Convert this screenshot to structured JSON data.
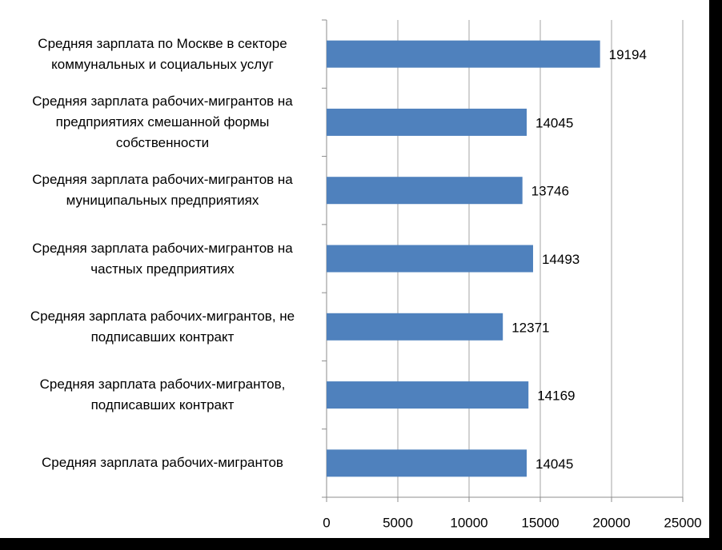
{
  "chart_data": {
    "type": "bar",
    "orientation": "horizontal",
    "categories": [
      "Средняя зарплата по Москве в секторе коммунальных и социальных услуг",
      "Средняя зарплата рабочих-мигрантов на предприятиях смешанной формы собственности",
      "Средняя зарплата рабочих-мигрантов на муниципальных предприятиях",
      "Средняя зарплата рабочих-мигрантов на частных предприятиях",
      "Средняя зарплата рабочих-мигрантов, не подписавших контракт",
      "Средняя зарплата рабочих-мигрантов, подписавших контракт",
      "Средняя зарплата рабочих-мигрантов"
    ],
    "values": [
      19194,
      14045,
      13746,
      14493,
      12371,
      14169,
      14045
    ],
    "color": "#4f81bd",
    "xlim": [
      0,
      25000
    ],
    "xticks": [
      0,
      5000,
      10000,
      15000,
      20000,
      25000
    ],
    "grid": true
  }
}
